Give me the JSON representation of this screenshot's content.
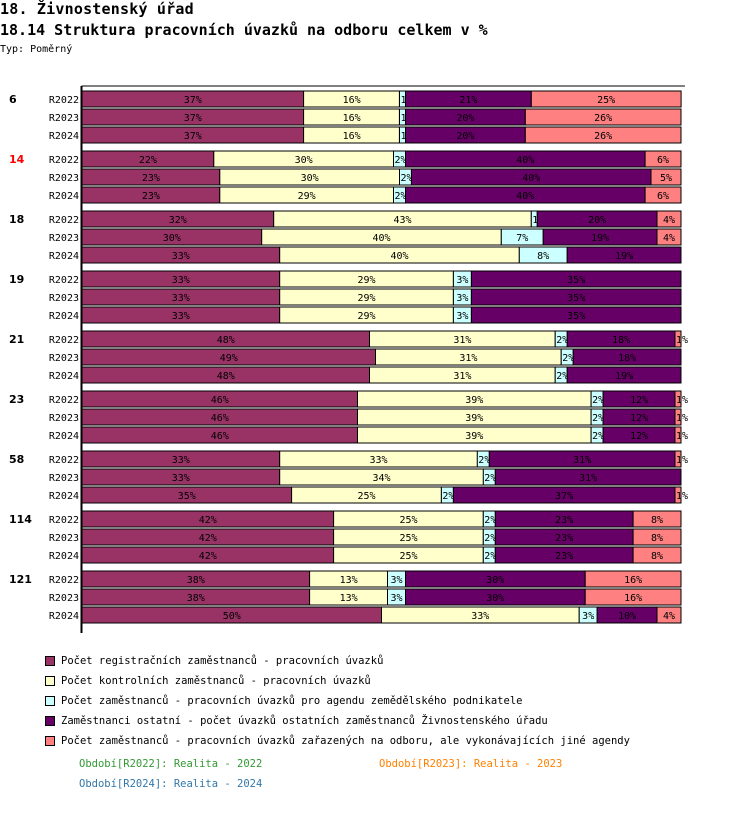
{
  "header": {
    "title": "18. Živnostenský úřad",
    "subtitle": "18.14 Struktura pracovních úvazků na odboru celkem v %",
    "type_label": "Typ: Poměrný"
  },
  "chart_data": {
    "type": "bar",
    "orientation": "horizontal",
    "stacked": true,
    "normalized": true,
    "title": "18.14 Struktura pracovních úvazků na odboru celkem v %",
    "xlabel": "",
    "ylabel": "",
    "xlim": [
      0,
      100
    ],
    "grid": false,
    "legend_position": "bottom",
    "series_names": [
      "Počet registračních zaměstnanců - pracovních úvazků",
      "Počet kontrolních zaměstnanců - pracovních úvazků",
      "Počet zaměstnanců - pracovních úvazků pro agendu zemědělského podnikatele",
      "Zaměstnanci ostatní - počet úvazků ostatních zaměstnanců Živnostenského úřadu",
      "Počet zaměstnanců - pracovních úvazků zařazených na odboru, ale vykonávajících jiné agendy"
    ],
    "series_colors": [
      "#993366",
      "#ffffcc",
      "#ccffff",
      "#660066",
      "#ff8080"
    ],
    "groups": [
      {
        "label": "6",
        "highlight": false,
        "rows": [
          {
            "period": "R2022",
            "values": [
              37,
              16,
              1,
              21,
              25
            ],
            "labels": [
              "37%",
              "16%",
              "1",
              "21%",
              "25%"
            ]
          },
          {
            "period": "R2023",
            "values": [
              37,
              16,
              1,
              20,
              26
            ],
            "labels": [
              "37%",
              "16%",
              "1",
              "20%",
              "26%"
            ]
          },
          {
            "period": "R2024",
            "values": [
              37,
              16,
              1,
              20,
              26
            ],
            "labels": [
              "37%",
              "16%",
              "1",
              "20%",
              "26%"
            ]
          }
        ]
      },
      {
        "label": "14",
        "highlight": true,
        "rows": [
          {
            "period": "R2022",
            "values": [
              22,
              30,
              2,
              40,
              6
            ],
            "labels": [
              "22%",
              "30%",
              "2%",
              "40%",
              "6%"
            ]
          },
          {
            "period": "R2023",
            "values": [
              23,
              30,
              2,
              40,
              5
            ],
            "labels": [
              "23%",
              "30%",
              "2%",
              "40%",
              "5%"
            ]
          },
          {
            "period": "R2024",
            "values": [
              23,
              29,
              2,
              40,
              6
            ],
            "labels": [
              "23%",
              "29%",
              "2%",
              "40%",
              "6%"
            ]
          }
        ]
      },
      {
        "label": "18",
        "highlight": false,
        "rows": [
          {
            "period": "R2022",
            "values": [
              32,
              43,
              1,
              20,
              4
            ],
            "labels": [
              "32%",
              "43%",
              "1",
              "20%",
              "4%"
            ]
          },
          {
            "period": "R2023",
            "values": [
              30,
              40,
              7,
              19,
              4
            ],
            "labels": [
              "30%",
              "40%",
              "7%",
              "19%",
              "4%"
            ]
          },
          {
            "period": "R2024",
            "values": [
              33,
              40,
              8,
              19,
              0
            ],
            "labels": [
              "33%",
              "40%",
              "8%",
              "19%",
              ""
            ]
          }
        ]
      },
      {
        "label": "19",
        "highlight": false,
        "rows": [
          {
            "period": "R2022",
            "values": [
              33,
              29,
              3,
              35,
              0
            ],
            "labels": [
              "33%",
              "29%",
              "3%",
              "35%",
              ""
            ]
          },
          {
            "period": "R2023",
            "values": [
              33,
              29,
              3,
              35,
              0
            ],
            "labels": [
              "33%",
              "29%",
              "3%",
              "35%",
              ""
            ]
          },
          {
            "period": "R2024",
            "values": [
              33,
              29,
              3,
              35,
              0
            ],
            "labels": [
              "33%",
              "29%",
              "3%",
              "35%",
              ""
            ]
          }
        ]
      },
      {
        "label": "21",
        "highlight": false,
        "rows": [
          {
            "period": "R2022",
            "values": [
              48,
              31,
              2,
              18,
              1
            ],
            "labels": [
              "48%",
              "31%",
              "2%",
              "18%",
              "1%"
            ]
          },
          {
            "period": "R2023",
            "values": [
              49,
              31,
              2,
              18,
              0
            ],
            "labels": [
              "49%",
              "31%",
              "2%",
              "18%",
              ""
            ]
          },
          {
            "period": "R2024",
            "values": [
              48,
              31,
              2,
              19,
              0
            ],
            "labels": [
              "48%",
              "31%",
              "2%",
              "19%",
              ""
            ]
          }
        ]
      },
      {
        "label": "23",
        "highlight": false,
        "rows": [
          {
            "period": "R2022",
            "values": [
              46,
              39,
              2,
              12,
              1
            ],
            "labels": [
              "46%",
              "39%",
              "2%",
              "12%",
              "1%"
            ]
          },
          {
            "period": "R2023",
            "values": [
              46,
              39,
              2,
              12,
              1
            ],
            "labels": [
              "46%",
              "39%",
              "2%",
              "12%",
              "1%"
            ]
          },
          {
            "period": "R2024",
            "values": [
              46,
              39,
              2,
              12,
              1
            ],
            "labels": [
              "46%",
              "39%",
              "2%",
              "12%",
              "1%"
            ]
          }
        ]
      },
      {
        "label": "58",
        "highlight": false,
        "rows": [
          {
            "period": "R2022",
            "values": [
              33,
              33,
              2,
              31,
              1
            ],
            "labels": [
              "33%",
              "33%",
              "2%",
              "31%",
              "1%"
            ]
          },
          {
            "period": "R2023",
            "values": [
              33,
              34,
              2,
              31,
              0
            ],
            "labels": [
              "33%",
              "34%",
              "2%",
              "31%",
              ""
            ]
          },
          {
            "period": "R2024",
            "values": [
              35,
              25,
              2,
              37,
              1
            ],
            "labels": [
              "35%",
              "25%",
              "2%",
              "37%",
              "1%"
            ]
          }
        ]
      },
      {
        "label": "114",
        "highlight": false,
        "rows": [
          {
            "period": "R2022",
            "values": [
              42,
              25,
              2,
              23,
              8
            ],
            "labels": [
              "42%",
              "25%",
              "2%",
              "23%",
              "8%"
            ]
          },
          {
            "period": "R2023",
            "values": [
              42,
              25,
              2,
              23,
              8
            ],
            "labels": [
              "42%",
              "25%",
              "2%",
              "23%",
              "8%"
            ]
          },
          {
            "period": "R2024",
            "values": [
              42,
              25,
              2,
              23,
              8
            ],
            "labels": [
              "42%",
              "25%",
              "2%",
              "23%",
              "8%"
            ]
          }
        ]
      },
      {
        "label": "121",
        "highlight": false,
        "rows": [
          {
            "period": "R2022",
            "values": [
              38,
              13,
              3,
              30,
              16
            ],
            "labels": [
              "38%",
              "13%",
              "3%",
              "30%",
              "16%"
            ]
          },
          {
            "period": "R2023",
            "values": [
              38,
              13,
              3,
              30,
              16
            ],
            "labels": [
              "38%",
              "13%",
              "3%",
              "30%",
              "16%"
            ]
          },
          {
            "period": "R2024",
            "values": [
              50,
              33,
              3,
              10,
              4
            ],
            "labels": [
              "50%",
              "33%",
              "3%",
              "10%",
              "4%"
            ]
          }
        ]
      }
    ],
    "periods": [
      {
        "code": "R2022",
        "text": "Období[R2022]: Realita - 2022",
        "color": "#339933"
      },
      {
        "code": "R2023",
        "text": "Období[R2023]: Realita - 2023",
        "color": "#ff8000"
      },
      {
        "code": "R2024",
        "text": "Období[R2024]: Realita - 2024",
        "color": "#3377aa"
      }
    ]
  },
  "colors": {
    "group_label_default": "#000000",
    "group_label_highlight": "#ff0000",
    "axis": "#000000"
  }
}
